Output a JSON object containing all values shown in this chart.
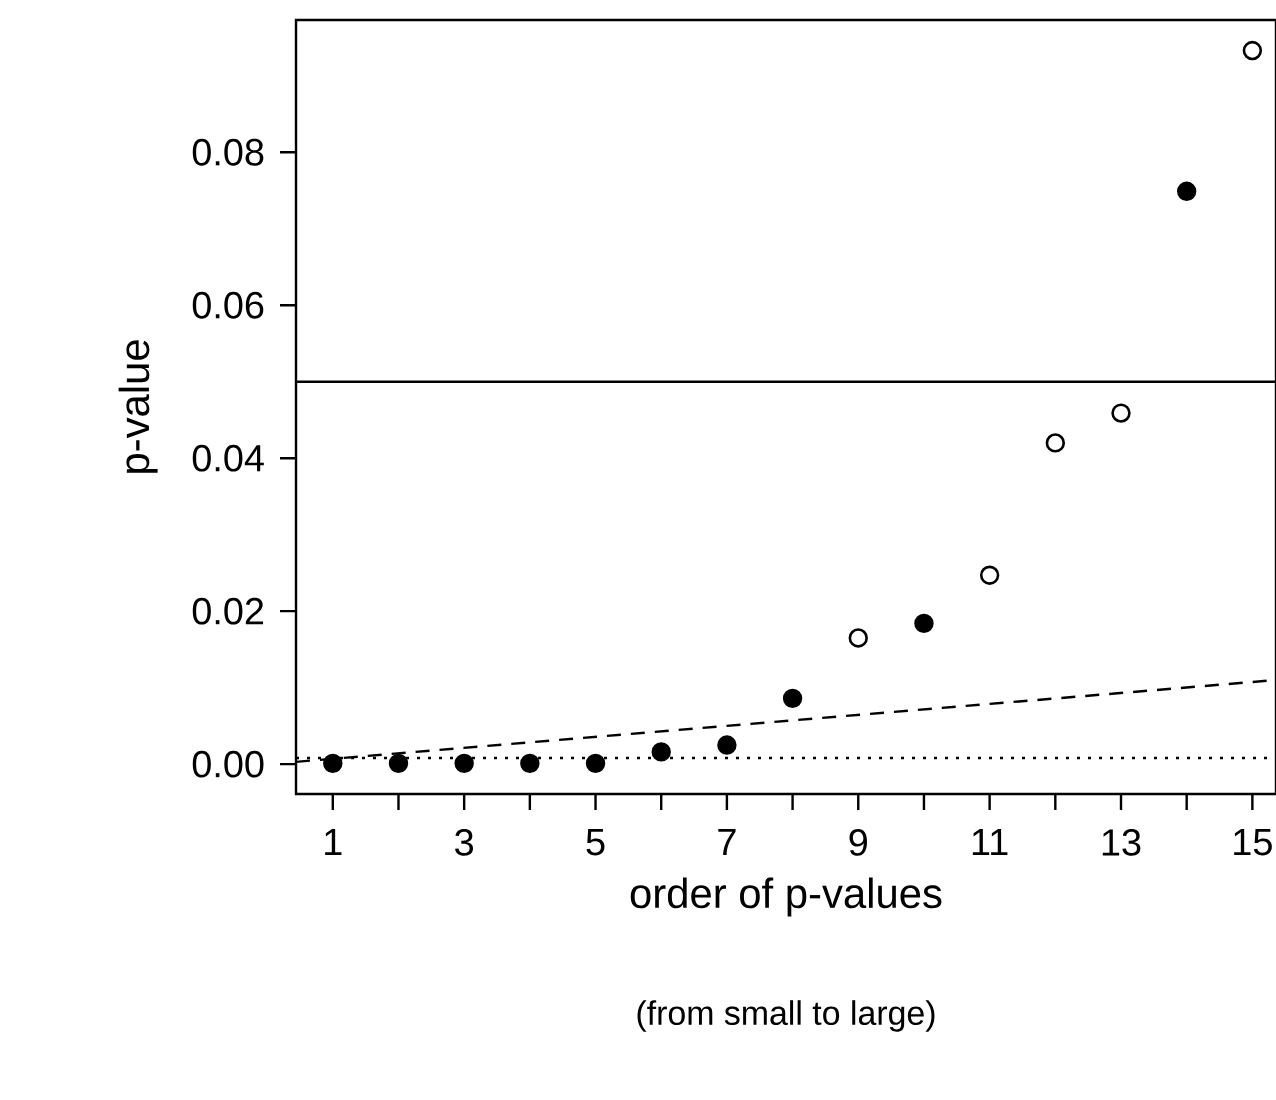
{
  "chart_data": {
    "type": "scatter",
    "xlabel": "order of p-values",
    "ylabel": "p-value",
    "annotations": [
      "(from small to large)"
    ],
    "xlim": [
      0.44,
      15.36
    ],
    "ylim": [
      -0.0039,
      0.0973
    ],
    "xticks": [
      1,
      {
        "value": 2,
        "label": null
      },
      3,
      {
        "value": 4,
        "label": null
      },
      5,
      {
        "value": 6,
        "label": null
      },
      7,
      {
        "value": 8,
        "label": null
      },
      9,
      {
        "value": 10,
        "label": null
      },
      11,
      {
        "value": 12,
        "label": null
      },
      13,
      {
        "value": 14,
        "label": null
      },
      15
    ],
    "yticks": [
      {
        "value": 0,
        "label": "0.00"
      },
      {
        "value": 0.02,
        "label": "0.02"
      },
      {
        "value": 0.04,
        "label": "0.04"
      },
      {
        "value": 0.06,
        "label": "0.06"
      },
      {
        "value": 0.08,
        "label": "0.08"
      }
    ],
    "grid": false,
    "series": [
      {
        "marker": "circle",
        "color": "#000000",
        "x": [
          1,
          2,
          3,
          4,
          5,
          6,
          7,
          8,
          10,
          14
        ],
        "values": [
          0.0001,
          0.0001,
          0.0001,
          0.0001,
          0.0001,
          0.0016,
          0.0025,
          0.0086,
          0.0184,
          0.0749
        ]
      },
      {
        "marker": "circle",
        "color": "#ffffff",
        "x": [
          9,
          11,
          12,
          13,
          15
        ],
        "values": [
          0.0165,
          0.0247,
          0.042,
          0.0459,
          0.0933
        ]
      },
      {
        "type": "line",
        "line_style": "dashed",
        "marker": "none",
        "color": "#000000",
        "x": [
          0.44,
          15.36
        ],
        "values": [
          0.0003,
          0.011
        ]
      }
    ],
    "ref_lines": [
      {
        "axis": "y",
        "value": 0.05,
        "line_style": "solid"
      },
      {
        "axis": "y",
        "value": 0.0008,
        "line_style": "dotted"
      }
    ]
  }
}
